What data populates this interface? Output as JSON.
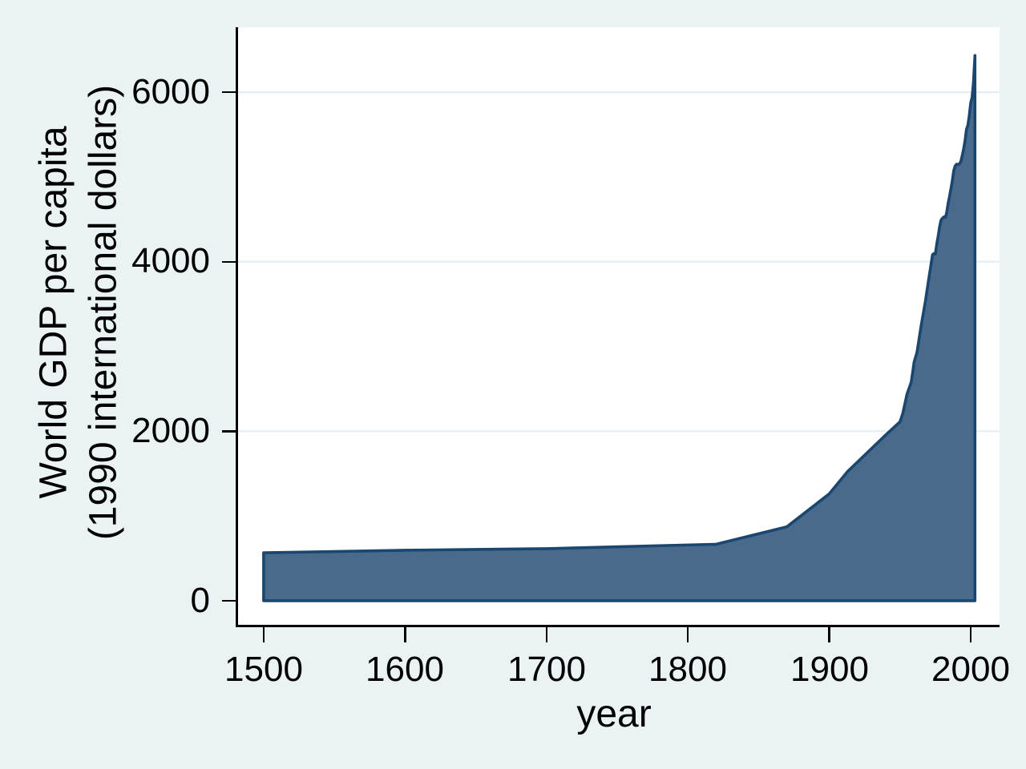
{
  "figure": {
    "background_color": "#eaf2f3",
    "plot_background_color": "#ffffff"
  },
  "chart_data": {
    "type": "area",
    "title": "",
    "xlabel": "year",
    "ylabel_lines": [
      "World GDP per capita",
      "(1990 international dollars)"
    ],
    "x_tick_labels": [
      "1500",
      "1600",
      "1700",
      "1800",
      "1900",
      "2000"
    ],
    "y_tick_labels": [
      "0",
      "2000",
      "4000",
      "6000"
    ],
    "x_ticks": [
      1500,
      1600,
      1700,
      1800,
      1900,
      2000
    ],
    "y_ticks": [
      0,
      2000,
      4000,
      6000
    ],
    "xlim": [
      1481.9,
      2020.4
    ],
    "ylim": [
      -284,
      6766
    ],
    "grid": "horizontal",
    "grid_y_values": [
      2000,
      4000,
      6000
    ],
    "legend": "none",
    "baseline_value": 0,
    "series": [
      {
        "name": "World GDP per capita (1990 international dollars)",
        "x": [
          1500,
          1600,
          1700,
          1820,
          1870,
          1900,
          1913,
          1940,
          1950,
          1952,
          1955,
          1958,
          1960,
          1962,
          1965,
          1968,
          1970,
          1973,
          1974,
          1975,
          1976,
          1977,
          1978,
          1979,
          1980,
          1981,
          1982,
          1983,
          1984,
          1985,
          1986,
          1987,
          1988,
          1989,
          1990,
          1991,
          1992,
          1993,
          1994,
          1995,
          1996,
          1997,
          1998,
          1999,
          2000,
          2001,
          2002,
          2003
        ],
        "y": [
          566,
          596,
          615,
          667,
          873,
          1262,
          1526,
          1958,
          2111,
          2210,
          2440,
          2580,
          2816,
          2930,
          3250,
          3540,
          3760,
          4083,
          4095,
          4091,
          4210,
          4300,
          4410,
          4490,
          4512,
          4528,
          4522,
          4575,
          4685,
          4765,
          4858,
          4955,
          5070,
          5130,
          5150,
          5145,
          5155,
          5180,
          5250,
          5330,
          5430,
          5560,
          5610,
          5720,
          5870,
          5940,
          6120,
          6432
        ]
      }
    ],
    "colors": {
      "area_fill": "#4a6a8b",
      "area_stroke": "#1a476f",
      "gridline": "#e2eff2",
      "axis": "#000000",
      "text": "#000000"
    }
  }
}
